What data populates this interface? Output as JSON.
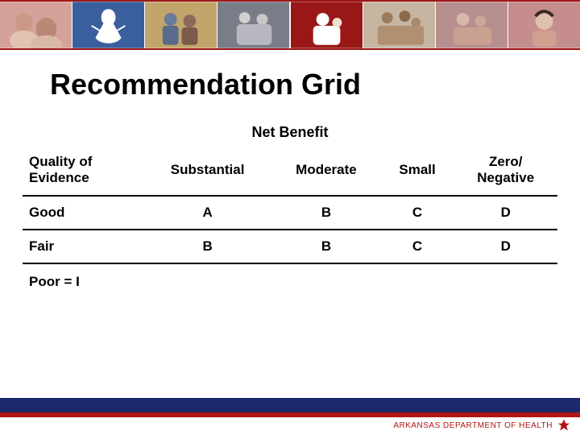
{
  "slide": {
    "title": "Recommendation Grid",
    "net_benefit_label": "Net Benefit",
    "poor_line": "Poor  =  I"
  },
  "table": {
    "row_header_label": "Quality of Evidence",
    "columns": [
      "Substantial",
      "Moderate",
      "Small",
      "Zero/ Negative"
    ],
    "rows": [
      {
        "label": "Good",
        "cells": [
          "A",
          "B",
          "C",
          "D"
        ]
      },
      {
        "label": "Fair",
        "cells": [
          "B",
          "B",
          "C",
          "D"
        ]
      }
    ]
  },
  "banner": {
    "tiles": [
      {
        "bg": "#d6a19a"
      },
      {
        "bg": "#3b5f9c"
      },
      {
        "bg": "#c2a56b"
      },
      {
        "bg": "#7a7c88"
      },
      {
        "bg": "#9a1717"
      },
      {
        "bg": "#c6b6a1"
      },
      {
        "bg": "#b88f8f"
      },
      {
        "bg": "#c58d8d"
      }
    ],
    "silhouette_color": "#ffffff",
    "silhouette_bg": "#3b5f9c"
  },
  "footer": {
    "brand_text": "ARKANSAS DEPARTMENT OF HEALTH",
    "brand_color": "#b01414",
    "bar_blue": "#1a2a6c",
    "bar_red": "#b01414"
  },
  "colors": {
    "text": "#000000",
    "background": "#ffffff",
    "rule": "#000000"
  }
}
